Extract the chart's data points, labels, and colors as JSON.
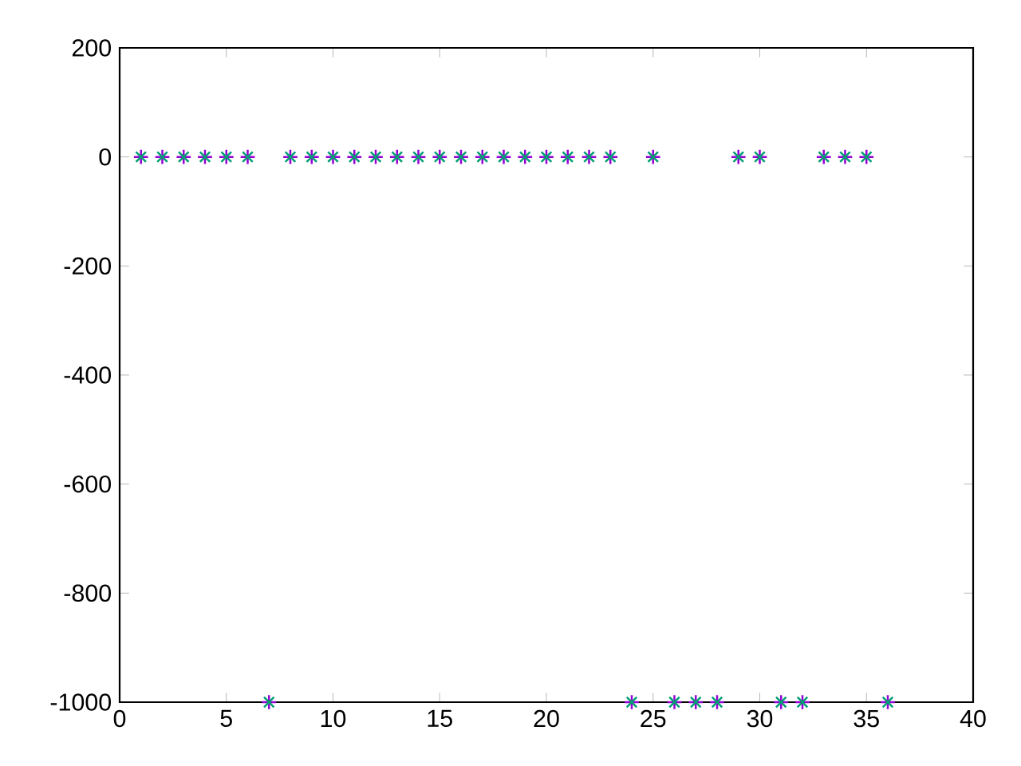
{
  "chart_data": {
    "type": "scatter",
    "x": [
      1,
      2,
      3,
      4,
      5,
      6,
      7,
      8,
      9,
      10,
      11,
      12,
      13,
      14,
      15,
      16,
      17,
      18,
      19,
      20,
      21,
      22,
      23,
      24,
      25,
      26,
      27,
      28,
      29,
      30,
      31,
      32,
      33,
      34,
      35,
      36
    ],
    "series": [
      {
        "color": "#9400d3",
        "marker": "cross",
        "values": [
          0,
          0,
          0,
          0,
          0,
          0,
          -1000,
          0,
          0,
          0,
          0,
          0,
          0,
          0,
          0,
          0,
          0,
          0,
          0,
          0,
          0,
          0,
          0,
          -1000,
          0,
          -1000,
          -1000,
          -1000,
          0,
          0,
          -1000,
          -1000,
          0,
          0,
          0,
          -1000
        ]
      },
      {
        "color": "#009e73",
        "marker": "cross",
        "values": [
          0,
          0,
          0,
          0,
          0,
          0,
          -1000,
          0,
          0,
          0,
          0,
          0,
          0,
          0,
          0,
          0,
          0,
          0,
          0,
          0,
          0,
          0,
          0,
          -1000,
          0,
          -1000,
          -1000,
          -1000,
          0,
          0,
          -1000,
          -1000,
          0,
          0,
          0,
          -1000
        ]
      }
    ],
    "xlim": [
      0,
      40
    ],
    "ylim": [
      -1000,
      200
    ],
    "xticks": [
      0,
      5,
      10,
      15,
      20,
      25,
      30,
      35,
      40
    ],
    "yticks": [
      -1000,
      -800,
      -600,
      -400,
      -200,
      0,
      200
    ]
  }
}
